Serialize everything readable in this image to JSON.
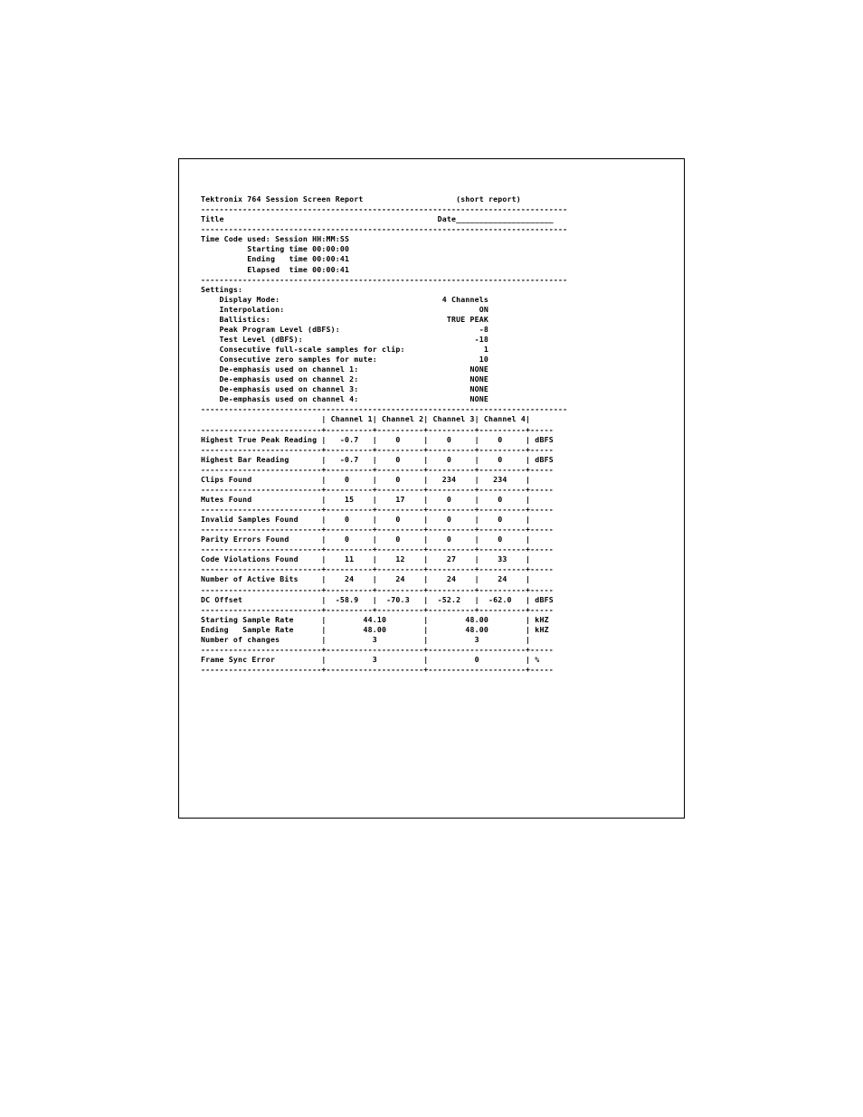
{
  "header_title": "Tektronix 764 Session Screen Report",
  "header_type": "(short report)",
  "title_label": "Title",
  "date_label": "Date",
  "time_code_label": "Time Code used: Session HH:MM:SS",
  "starting_time_label": "Starting time",
  "starting_time_value": "00:00:00",
  "ending_time_label": "Ending   time",
  "ending_time_value": "00:00:41",
  "elapsed_time_label": "Elapsed  time",
  "elapsed_time_value": "00:00:41",
  "settings_label": "Settings:",
  "settings": {
    "display_mode_label": "Display Mode:",
    "display_mode_value": "4 Channels",
    "interpolation_label": "Interpolation:",
    "interpolation_value": "ON",
    "ballistics_label": "Ballistics:",
    "ballistics_value": "TRUE PEAK",
    "peak_program_label": "Peak Program Level (dBFS):",
    "peak_program_value": "-8",
    "test_level_label": "Test Level (dBFS):",
    "test_level_value": "-18",
    "consec_full_label": "Consecutive full-scale samples for clip:",
    "consec_full_value": "1",
    "consec_zero_label": "Consecutive zero samples for mute:",
    "consec_zero_value": "10",
    "deemph1_label": "De-emphasis used on channel 1:",
    "deemph1_value": "NONE",
    "deemph2_label": "De-emphasis used on channel 2:",
    "deemph2_value": "NONE",
    "deemph3_label": "De-emphasis used on channel 3:",
    "deemph3_value": "NONE",
    "deemph4_label": "De-emphasis used on channel 4:",
    "deemph4_value": "NONE"
  },
  "channel_headers": [
    "Channel 1",
    "Channel 2",
    "Channel 3",
    "Channel 4"
  ],
  "rows": {
    "highest_true_peak": {
      "label": "Highest True Peak Reading",
      "vals": [
        "-0.7",
        "0",
        "0",
        "0"
      ],
      "unit": "dBFS"
    },
    "highest_bar": {
      "label": "Highest Bar Reading",
      "vals": [
        "-0.7",
        "0",
        "0",
        "0"
      ],
      "unit": "dBFS"
    },
    "clips_found": {
      "label": "Clips Found",
      "vals": [
        "0",
        "0",
        "234",
        "234"
      ],
      "unit": ""
    },
    "mutes_found": {
      "label": "Mutes Found",
      "vals": [
        "15",
        "17",
        "0",
        "0"
      ],
      "unit": ""
    },
    "invalid_samples": {
      "label": "Invalid Samples Found",
      "vals": [
        "0",
        "0",
        "0",
        "0"
      ],
      "unit": ""
    },
    "parity_errors": {
      "label": "Parity Errors Found",
      "vals": [
        "0",
        "0",
        "0",
        "0"
      ],
      "unit": ""
    },
    "code_violations": {
      "label": "Code Violations Found",
      "vals": [
        "11",
        "12",
        "27",
        "33"
      ],
      "unit": ""
    },
    "active_bits": {
      "label": "Number of Active Bits",
      "vals": [
        "24",
        "24",
        "24",
        "24"
      ],
      "unit": ""
    },
    "dc_offset": {
      "label": "DC Offset",
      "vals": [
        "-58.9",
        "-70.3",
        "-52.2",
        "-62.0"
      ],
      "unit": "dBFS"
    }
  },
  "sample_rate": {
    "starting_label": "Starting Sample Rate",
    "ending_label": "Ending   Sample Rate",
    "changes_label": "Number of changes",
    "col_a": [
      "44.10",
      "48.00",
      "3"
    ],
    "col_b": [
      "48.00",
      "48.00",
      "3"
    ],
    "unit": "kHZ"
  },
  "frame_sync": {
    "label": "Frame Sync Error",
    "vals": [
      "3",
      "0"
    ],
    "unit": "%"
  }
}
